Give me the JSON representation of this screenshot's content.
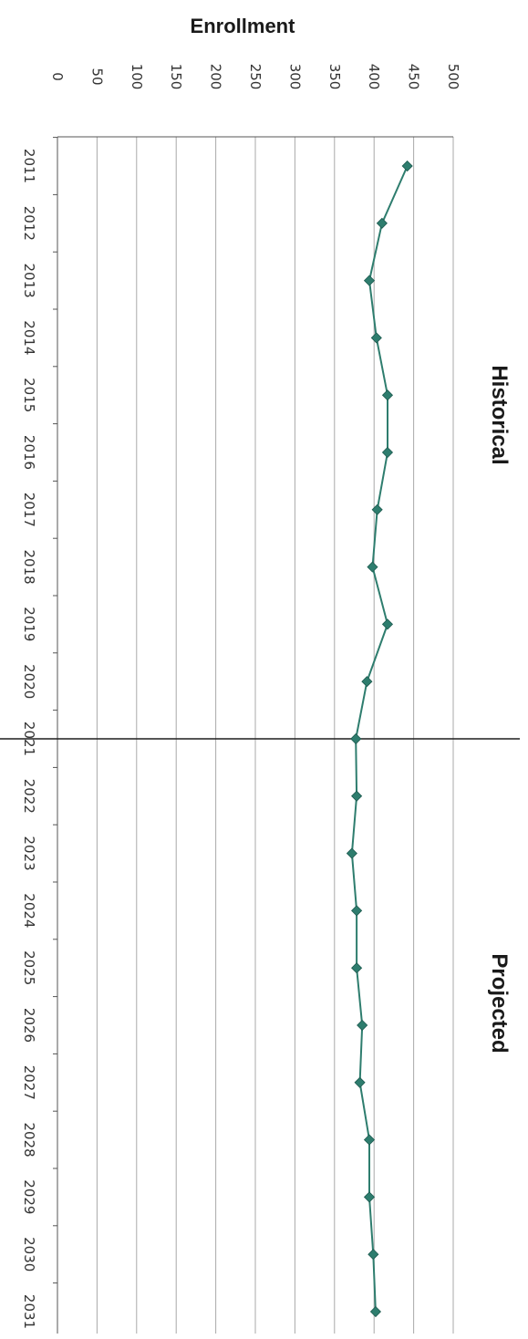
{
  "chart_data": {
    "type": "line",
    "title": "Enrollment",
    "orientation": "rotated 90 degrees clockwise",
    "ylim": [
      0,
      500
    ],
    "yticks": [
      "0",
      "50",
      "100",
      "150",
      "200",
      "250",
      "300",
      "350",
      "400",
      "450",
      "500"
    ],
    "x": [
      "2011",
      "2012",
      "2013",
      "2014",
      "2015",
      "2016",
      "2017",
      "2018",
      "2019",
      "2020",
      "2021",
      "2022",
      "2023",
      "2024",
      "2025",
      "2026",
      "2027",
      "2028",
      "2029",
      "2030",
      "2031"
    ],
    "series": [
      {
        "color": "#2e7d6e",
        "marker": "diamond",
        "values": [
          442,
          410,
          394,
          403,
          417,
          417,
          404,
          398,
          417,
          391,
          377,
          378,
          372,
          378,
          378,
          385,
          382,
          394,
          394,
          399,
          402
        ]
      }
    ],
    "split_at": "2021",
    "section_labels": {
      "left": "Historical",
      "right": "Projected"
    },
    "grid": true
  }
}
